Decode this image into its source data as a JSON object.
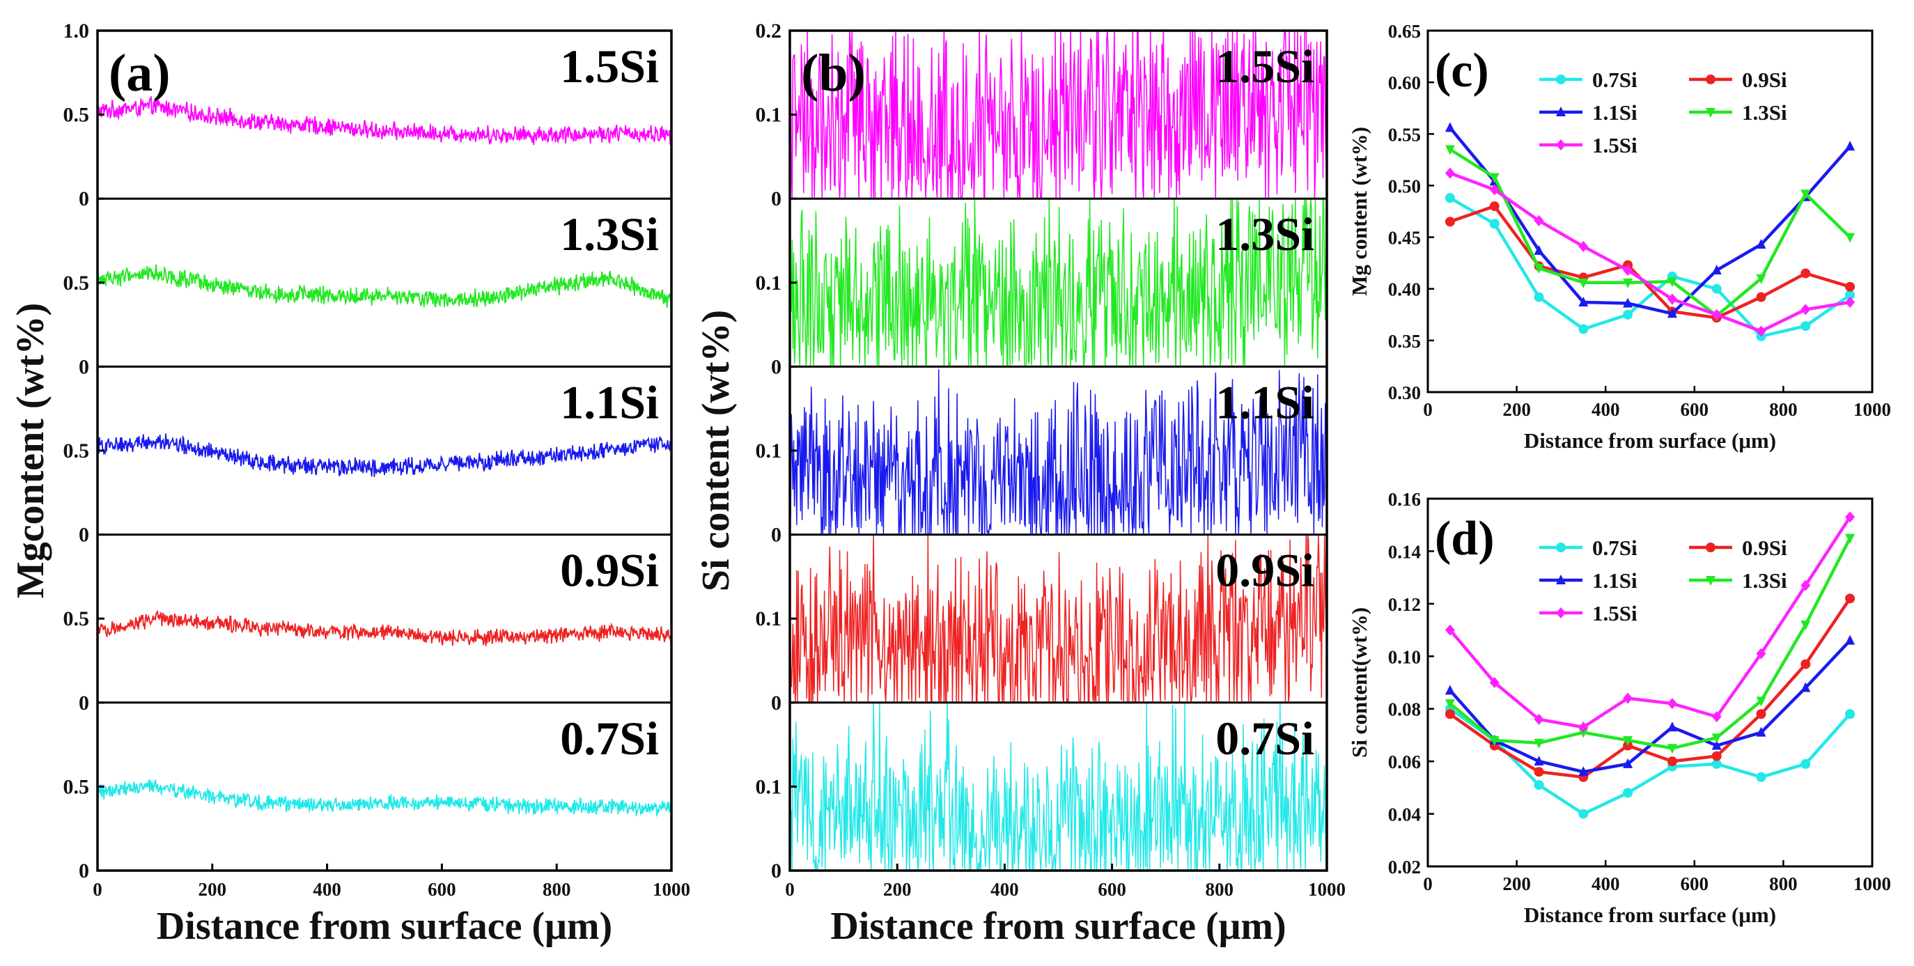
{
  "chart_data": [
    {
      "panel": "(a)",
      "type": "line",
      "xlabel": "Distance from surface (μm)",
      "ylabel": "Mgcontent  (wt%)",
      "xlim": [
        0,
        1000
      ],
      "xticks": [
        "0",
        "200",
        "400",
        "600",
        "800",
        "1000"
      ],
      "top_ytick": "1.0",
      "stack_yticks": [
        "0",
        "0.5"
      ],
      "ylim": [
        0,
        1.0
      ],
      "grid": false,
      "series": [
        {
          "name": "1.5Si",
          "color": "#ff00ff",
          "x": [
            0,
            100,
            200,
            300,
            400,
            500,
            600,
            700,
            800,
            900,
            1000
          ],
          "values": [
            0.52,
            0.55,
            0.49,
            0.45,
            0.43,
            0.4,
            0.39,
            0.38,
            0.38,
            0.39,
            0.38
          ],
          "noise": 0.045
        },
        {
          "name": "1.3Si",
          "color": "#22e822",
          "x": [
            0,
            100,
            200,
            300,
            400,
            500,
            600,
            700,
            800,
            900,
            1000
          ],
          "values": [
            0.52,
            0.56,
            0.48,
            0.44,
            0.42,
            0.42,
            0.4,
            0.42,
            0.48,
            0.52,
            0.38
          ],
          "noise": 0.045
        },
        {
          "name": "1.1Si",
          "color": "#1a1aee",
          "x": [
            0,
            100,
            200,
            300,
            400,
            500,
            600,
            700,
            800,
            900,
            1000
          ],
          "values": [
            0.52,
            0.56,
            0.49,
            0.42,
            0.4,
            0.4,
            0.42,
            0.44,
            0.47,
            0.5,
            0.55
          ],
          "noise": 0.045
        },
        {
          "name": "0.9Si",
          "color": "#ee2222",
          "x": [
            0,
            100,
            200,
            300,
            400,
            500,
            600,
            700,
            800,
            900,
            1000
          ],
          "values": [
            0.42,
            0.5,
            0.48,
            0.44,
            0.42,
            0.42,
            0.38,
            0.39,
            0.4,
            0.42,
            0.4
          ],
          "noise": 0.04
        },
        {
          "name": "0.7Si",
          "color": "#22e8e8",
          "x": [
            0,
            100,
            200,
            300,
            400,
            500,
            600,
            700,
            800,
            900,
            1000
          ],
          "values": [
            0.47,
            0.5,
            0.44,
            0.4,
            0.39,
            0.4,
            0.41,
            0.39,
            0.38,
            0.38,
            0.38
          ],
          "noise": 0.04
        }
      ]
    },
    {
      "panel": "(b)",
      "type": "line",
      "xlabel": "Distance from surface (μm)",
      "ylabel": "Si content  (wt%)",
      "xlim": [
        0,
        1000
      ],
      "xticks": [
        "0",
        "200",
        "400",
        "600",
        "800",
        "1000"
      ],
      "top_ytick": "0.2",
      "stack_yticks": [
        "0",
        "0.1"
      ],
      "ylim": [
        0,
        0.2
      ],
      "grid": false,
      "series": [
        {
          "name": "1.5Si",
          "color": "#ff00ff",
          "x": [
            0,
            200,
            400,
            600,
            800,
            1000
          ],
          "values": [
            0.09,
            0.08,
            0.08,
            0.09,
            0.11,
            0.12
          ],
          "noise": 0.1
        },
        {
          "name": "1.3Si",
          "color": "#22e822",
          "x": [
            0,
            200,
            400,
            600,
            800,
            1000
          ],
          "values": [
            0.08,
            0.07,
            0.07,
            0.07,
            0.09,
            0.12
          ],
          "noise": 0.09
        },
        {
          "name": "1.1Si",
          "color": "#1a1aee",
          "x": [
            0,
            200,
            400,
            600,
            800,
            1000
          ],
          "values": [
            0.08,
            0.06,
            0.06,
            0.07,
            0.08,
            0.1
          ],
          "noise": 0.09
        },
        {
          "name": "0.9Si",
          "color": "#ee2222",
          "x": [
            0,
            200,
            400,
            600,
            800,
            1000
          ],
          "values": [
            0.07,
            0.06,
            0.06,
            0.06,
            0.08,
            0.11
          ],
          "noise": 0.09
        },
        {
          "name": "0.7Si",
          "color": "#22e8e8",
          "x": [
            0,
            200,
            400,
            600,
            800,
            1000
          ],
          "values": [
            0.07,
            0.06,
            0.05,
            0.06,
            0.06,
            0.08
          ],
          "noise": 0.08
        }
      ]
    },
    {
      "panel": "(c)",
      "type": "line",
      "xlabel": "Distance from surface (μm)",
      "ylabel": "Mg content (wt%)",
      "xlim": [
        0,
        1000
      ],
      "xticks": [
        0,
        200,
        400,
        600,
        800,
        1000
      ],
      "ylim": [
        0.3,
        0.65
      ],
      "yticks": [
        "0.30",
        "0.35",
        "0.40",
        "0.45",
        "0.50",
        "0.55",
        "0.60",
        "0.65"
      ],
      "legend": "top-left, inside",
      "grid": false,
      "x": [
        50,
        150,
        250,
        350,
        450,
        550,
        650,
        750,
        850,
        950
      ],
      "series": [
        {
          "name": "0.7Si",
          "color": "#22e8e8",
          "marker": "circle",
          "values": [
            0.488,
            0.463,
            0.392,
            0.361,
            0.375,
            0.412,
            0.4,
            0.354,
            0.364,
            0.394
          ]
        },
        {
          "name": "0.9Si",
          "color": "#ee2222",
          "marker": "circle",
          "values": [
            0.465,
            0.48,
            0.422,
            0.411,
            0.423,
            0.378,
            0.372,
            0.392,
            0.415,
            0.402
          ]
        },
        {
          "name": "1.1Si",
          "color": "#1a1aee",
          "marker": "triangle",
          "values": [
            0.556,
            0.504,
            0.437,
            0.387,
            0.386,
            0.376,
            0.418,
            0.443,
            0.489,
            0.538
          ]
        },
        {
          "name": "1.3Si",
          "color": "#22e822",
          "marker": "triangle-down",
          "values": [
            0.535,
            0.508,
            0.42,
            0.406,
            0.406,
            0.407,
            0.374,
            0.41,
            0.492,
            0.45
          ]
        },
        {
          "name": "1.5Si",
          "color": "#ff22ff",
          "marker": "diamond",
          "values": [
            0.512,
            0.496,
            0.466,
            0.441,
            0.418,
            0.39,
            0.375,
            0.359,
            0.38,
            0.387
          ]
        }
      ]
    },
    {
      "panel": "(d)",
      "type": "line",
      "xlabel": "Distance from surface (μm)",
      "ylabel": "Si content(wt%)",
      "xlim": [
        0,
        1000
      ],
      "xticks": [
        0,
        200,
        400,
        600,
        800,
        1000
      ],
      "ylim": [
        0.02,
        0.16
      ],
      "yticks": [
        "0.02",
        "0.04",
        "0.06",
        "0.08",
        "0.10",
        "0.12",
        "0.14",
        "0.16"
      ],
      "legend": "top-left, inside",
      "grid": false,
      "x": [
        50,
        150,
        250,
        350,
        450,
        550,
        650,
        750,
        850,
        950
      ],
      "series": [
        {
          "name": "0.7Si",
          "color": "#22e8e8",
          "marker": "circle",
          "values": [
            0.08,
            0.068,
            0.051,
            0.04,
            0.048,
            0.058,
            0.059,
            0.054,
            0.059,
            0.078
          ]
        },
        {
          "name": "0.9Si",
          "color": "#ee2222",
          "marker": "circle",
          "values": [
            0.078,
            0.066,
            0.056,
            0.054,
            0.066,
            0.06,
            0.062,
            0.078,
            0.097,
            0.122
          ]
        },
        {
          "name": "1.1Si",
          "color": "#1a1aee",
          "marker": "triangle",
          "values": [
            0.087,
            0.068,
            0.06,
            0.056,
            0.059,
            0.073,
            0.066,
            0.071,
            0.088,
            0.106
          ]
        },
        {
          "name": "1.3Si",
          "color": "#22e822",
          "marker": "triangle-down",
          "values": [
            0.082,
            0.068,
            0.067,
            0.071,
            0.068,
            0.065,
            0.069,
            0.083,
            0.112,
            0.145
          ]
        },
        {
          "name": "1.5Si",
          "color": "#ff22ff",
          "marker": "diamond",
          "values": [
            0.11,
            0.09,
            0.076,
            0.073,
            0.084,
            0.082,
            0.077,
            0.101,
            0.127,
            0.153
          ]
        }
      ]
    }
  ]
}
